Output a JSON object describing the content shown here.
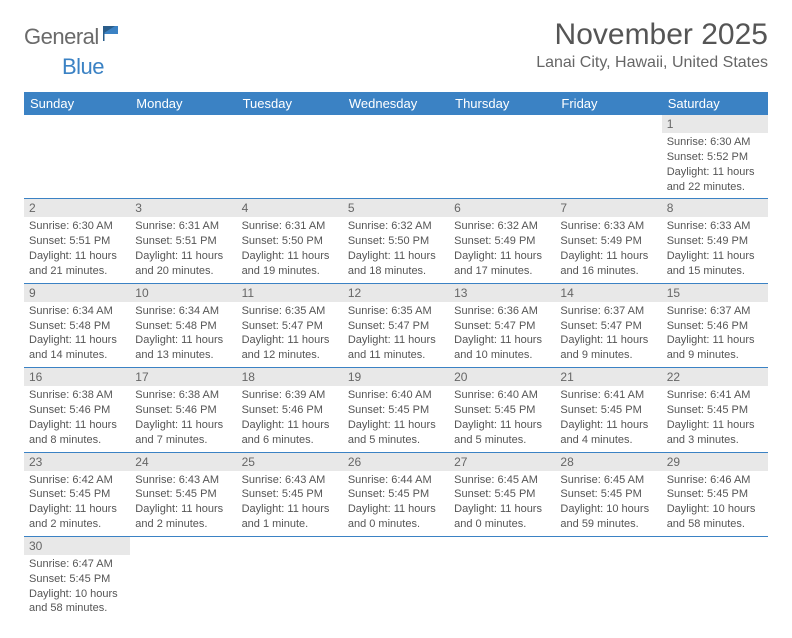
{
  "brand": {
    "part1": "General",
    "part2": "Blue"
  },
  "title": "November 2025",
  "location": "Lanai City, Hawaii, United States",
  "colors": {
    "header_bg": "#3b82c4",
    "header_text": "#ffffff",
    "daynum_bg": "#e8e8e8",
    "text": "#555555",
    "border": "#3b82c4",
    "logo_gray": "#6a6a6a",
    "logo_blue": "#3b82c4"
  },
  "weekdays": [
    "Sunday",
    "Monday",
    "Tuesday",
    "Wednesday",
    "Thursday",
    "Friday",
    "Saturday"
  ],
  "weeks": [
    [
      null,
      null,
      null,
      null,
      null,
      null,
      {
        "n": "1",
        "sunrise": "Sunrise: 6:30 AM",
        "sunset": "Sunset: 5:52 PM",
        "daylight": "Daylight: 11 hours and 22 minutes."
      }
    ],
    [
      {
        "n": "2",
        "sunrise": "Sunrise: 6:30 AM",
        "sunset": "Sunset: 5:51 PM",
        "daylight": "Daylight: 11 hours and 21 minutes."
      },
      {
        "n": "3",
        "sunrise": "Sunrise: 6:31 AM",
        "sunset": "Sunset: 5:51 PM",
        "daylight": "Daylight: 11 hours and 20 minutes."
      },
      {
        "n": "4",
        "sunrise": "Sunrise: 6:31 AM",
        "sunset": "Sunset: 5:50 PM",
        "daylight": "Daylight: 11 hours and 19 minutes."
      },
      {
        "n": "5",
        "sunrise": "Sunrise: 6:32 AM",
        "sunset": "Sunset: 5:50 PM",
        "daylight": "Daylight: 11 hours and 18 minutes."
      },
      {
        "n": "6",
        "sunrise": "Sunrise: 6:32 AM",
        "sunset": "Sunset: 5:49 PM",
        "daylight": "Daylight: 11 hours and 17 minutes."
      },
      {
        "n": "7",
        "sunrise": "Sunrise: 6:33 AM",
        "sunset": "Sunset: 5:49 PM",
        "daylight": "Daylight: 11 hours and 16 minutes."
      },
      {
        "n": "8",
        "sunrise": "Sunrise: 6:33 AM",
        "sunset": "Sunset: 5:49 PM",
        "daylight": "Daylight: 11 hours and 15 minutes."
      }
    ],
    [
      {
        "n": "9",
        "sunrise": "Sunrise: 6:34 AM",
        "sunset": "Sunset: 5:48 PM",
        "daylight": "Daylight: 11 hours and 14 minutes."
      },
      {
        "n": "10",
        "sunrise": "Sunrise: 6:34 AM",
        "sunset": "Sunset: 5:48 PM",
        "daylight": "Daylight: 11 hours and 13 minutes."
      },
      {
        "n": "11",
        "sunrise": "Sunrise: 6:35 AM",
        "sunset": "Sunset: 5:47 PM",
        "daylight": "Daylight: 11 hours and 12 minutes."
      },
      {
        "n": "12",
        "sunrise": "Sunrise: 6:35 AM",
        "sunset": "Sunset: 5:47 PM",
        "daylight": "Daylight: 11 hours and 11 minutes."
      },
      {
        "n": "13",
        "sunrise": "Sunrise: 6:36 AM",
        "sunset": "Sunset: 5:47 PM",
        "daylight": "Daylight: 11 hours and 10 minutes."
      },
      {
        "n": "14",
        "sunrise": "Sunrise: 6:37 AM",
        "sunset": "Sunset: 5:47 PM",
        "daylight": "Daylight: 11 hours and 9 minutes."
      },
      {
        "n": "15",
        "sunrise": "Sunrise: 6:37 AM",
        "sunset": "Sunset: 5:46 PM",
        "daylight": "Daylight: 11 hours and 9 minutes."
      }
    ],
    [
      {
        "n": "16",
        "sunrise": "Sunrise: 6:38 AM",
        "sunset": "Sunset: 5:46 PM",
        "daylight": "Daylight: 11 hours and 8 minutes."
      },
      {
        "n": "17",
        "sunrise": "Sunrise: 6:38 AM",
        "sunset": "Sunset: 5:46 PM",
        "daylight": "Daylight: 11 hours and 7 minutes."
      },
      {
        "n": "18",
        "sunrise": "Sunrise: 6:39 AM",
        "sunset": "Sunset: 5:46 PM",
        "daylight": "Daylight: 11 hours and 6 minutes."
      },
      {
        "n": "19",
        "sunrise": "Sunrise: 6:40 AM",
        "sunset": "Sunset: 5:45 PM",
        "daylight": "Daylight: 11 hours and 5 minutes."
      },
      {
        "n": "20",
        "sunrise": "Sunrise: 6:40 AM",
        "sunset": "Sunset: 5:45 PM",
        "daylight": "Daylight: 11 hours and 5 minutes."
      },
      {
        "n": "21",
        "sunrise": "Sunrise: 6:41 AM",
        "sunset": "Sunset: 5:45 PM",
        "daylight": "Daylight: 11 hours and 4 minutes."
      },
      {
        "n": "22",
        "sunrise": "Sunrise: 6:41 AM",
        "sunset": "Sunset: 5:45 PM",
        "daylight": "Daylight: 11 hours and 3 minutes."
      }
    ],
    [
      {
        "n": "23",
        "sunrise": "Sunrise: 6:42 AM",
        "sunset": "Sunset: 5:45 PM",
        "daylight": "Daylight: 11 hours and 2 minutes."
      },
      {
        "n": "24",
        "sunrise": "Sunrise: 6:43 AM",
        "sunset": "Sunset: 5:45 PM",
        "daylight": "Daylight: 11 hours and 2 minutes."
      },
      {
        "n": "25",
        "sunrise": "Sunrise: 6:43 AM",
        "sunset": "Sunset: 5:45 PM",
        "daylight": "Daylight: 11 hours and 1 minute."
      },
      {
        "n": "26",
        "sunrise": "Sunrise: 6:44 AM",
        "sunset": "Sunset: 5:45 PM",
        "daylight": "Daylight: 11 hours and 0 minutes."
      },
      {
        "n": "27",
        "sunrise": "Sunrise: 6:45 AM",
        "sunset": "Sunset: 5:45 PM",
        "daylight": "Daylight: 11 hours and 0 minutes."
      },
      {
        "n": "28",
        "sunrise": "Sunrise: 6:45 AM",
        "sunset": "Sunset: 5:45 PM",
        "daylight": "Daylight: 10 hours and 59 minutes."
      },
      {
        "n": "29",
        "sunrise": "Sunrise: 6:46 AM",
        "sunset": "Sunset: 5:45 PM",
        "daylight": "Daylight: 10 hours and 58 minutes."
      }
    ],
    [
      {
        "n": "30",
        "sunrise": "Sunrise: 6:47 AM",
        "sunset": "Sunset: 5:45 PM",
        "daylight": "Daylight: 10 hours and 58 minutes."
      },
      null,
      null,
      null,
      null,
      null,
      null
    ]
  ]
}
